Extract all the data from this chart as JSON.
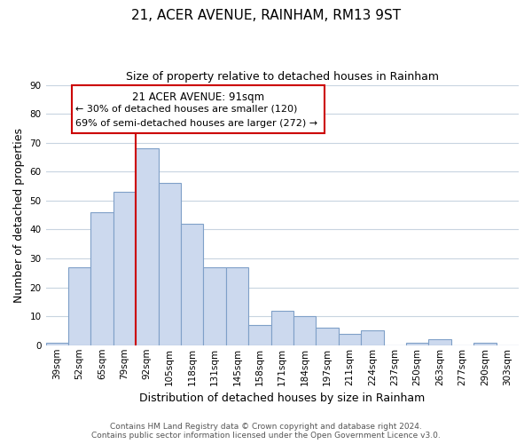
{
  "title": "21, ACER AVENUE, RAINHAM, RM13 9ST",
  "subtitle": "Size of property relative to detached houses in Rainham",
  "xlabel": "Distribution of detached houses by size in Rainham",
  "ylabel": "Number of detached properties",
  "categories": [
    "39sqm",
    "52sqm",
    "65sqm",
    "79sqm",
    "92sqm",
    "105sqm",
    "118sqm",
    "131sqm",
    "145sqm",
    "158sqm",
    "171sqm",
    "184sqm",
    "197sqm",
    "211sqm",
    "224sqm",
    "237sqm",
    "250sqm",
    "263sqm",
    "277sqm",
    "290sqm",
    "303sqm"
  ],
  "values": [
    1,
    27,
    46,
    53,
    68,
    56,
    42,
    27,
    27,
    7,
    12,
    10,
    6,
    4,
    5,
    0,
    1,
    2,
    0,
    1,
    0
  ],
  "bar_color": "#ccd9ee",
  "bar_edge_color": "#7fa0c8",
  "vline_x_index": 4,
  "vline_color": "#cc0000",
  "ylim": [
    0,
    90
  ],
  "yticks": [
    0,
    10,
    20,
    30,
    40,
    50,
    60,
    70,
    80,
    90
  ],
  "annotation_title": "21 ACER AVENUE: 91sqm",
  "annotation_line1": "← 30% of detached houses are smaller (120)",
  "annotation_line2": "69% of semi-detached houses are larger (272) →",
  "footer_line1": "Contains HM Land Registry data © Crown copyright and database right 2024.",
  "footer_line2": "Contains public sector information licensed under the Open Government Licence v3.0.",
  "background_color": "#ffffff",
  "grid_color": "#c8d4e0",
  "title_fontsize": 11,
  "subtitle_fontsize": 9,
  "axis_label_fontsize": 9,
  "tick_fontsize": 7.5,
  "footer_fontsize": 6.5
}
